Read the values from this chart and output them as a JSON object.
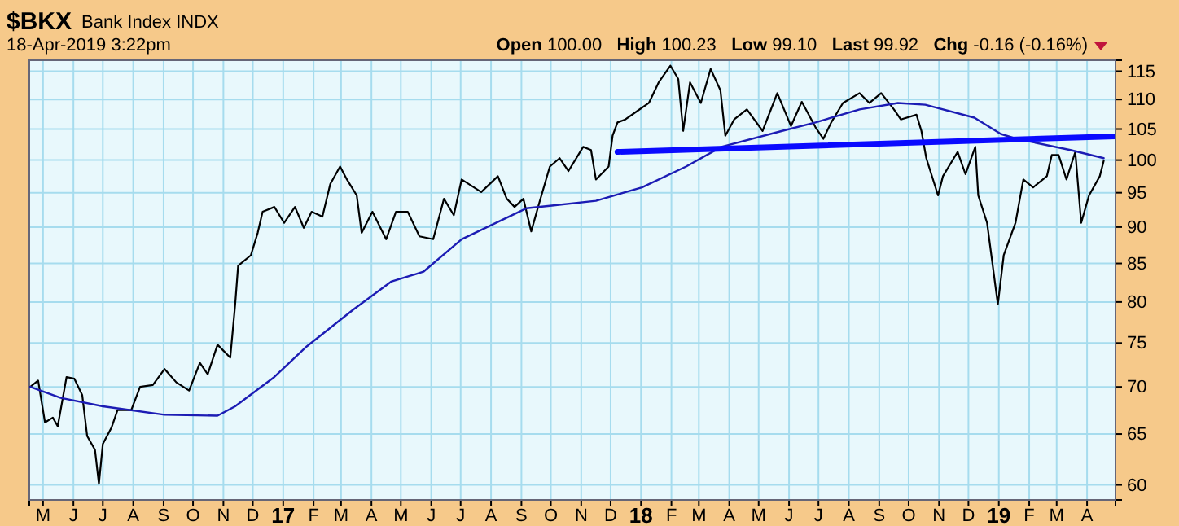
{
  "chart_data": {
    "type": "line",
    "title": "$BKX",
    "subtitle": "Bank Index  INDX",
    "annotations": [
      "18-Apr-2019 3:22pm",
      "Open 100.00",
      "High 100.23",
      "Low 99.10",
      "Last 99.92",
      "Chg -0.16 (-0.16%)"
    ],
    "log": "y",
    "grid": true,
    "xlim": [
      "2016-04-17",
      "2019-04-30"
    ],
    "xticks": [
      {
        "value": "2016-05-01",
        "label": "M"
      },
      {
        "value": "2016-06-01",
        "label": "J"
      },
      {
        "value": "2016-07-01",
        "label": "J"
      },
      {
        "value": "2016-08-01",
        "label": "A"
      },
      {
        "value": "2016-09-01",
        "label": "S"
      },
      {
        "value": "2016-10-01",
        "label": "O"
      },
      {
        "value": "2016-11-01",
        "label": "N"
      },
      {
        "value": "2016-12-01",
        "label": "D"
      },
      {
        "value": "2017-01-01",
        "label": "17"
      },
      {
        "value": "2017-02-01",
        "label": "F"
      },
      {
        "value": "2017-03-01",
        "label": "M"
      },
      {
        "value": "2017-04-01",
        "label": "A"
      },
      {
        "value": "2017-05-01",
        "label": "M"
      },
      {
        "value": "2017-06-01",
        "label": "J"
      },
      {
        "value": "2017-07-01",
        "label": "J"
      },
      {
        "value": "2017-08-01",
        "label": "A"
      },
      {
        "value": "2017-09-01",
        "label": "S"
      },
      {
        "value": "2017-10-01",
        "label": "O"
      },
      {
        "value": "2017-11-01",
        "label": "N"
      },
      {
        "value": "2017-12-01",
        "label": "D"
      },
      {
        "value": "2018-01-01",
        "label": "18"
      },
      {
        "value": "2018-02-01",
        "label": "F"
      },
      {
        "value": "2018-03-01",
        "label": "M"
      },
      {
        "value": "2018-04-01",
        "label": "A"
      },
      {
        "value": "2018-05-01",
        "label": "M"
      },
      {
        "value": "2018-06-01",
        "label": "J"
      },
      {
        "value": "2018-07-01",
        "label": "J"
      },
      {
        "value": "2018-08-01",
        "label": "A"
      },
      {
        "value": "2018-09-01",
        "label": "S"
      },
      {
        "value": "2018-10-01",
        "label": "O"
      },
      {
        "value": "2018-11-01",
        "label": "N"
      },
      {
        "value": "2018-12-01",
        "label": "D"
      },
      {
        "value": "2019-01-01",
        "label": "19"
      },
      {
        "value": "2019-02-01",
        "label": "F"
      },
      {
        "value": "2019-03-01",
        "label": "M"
      },
      {
        "value": "2019-04-01",
        "label": "A"
      }
    ],
    "ylim": [
      58.6,
      117
    ],
    "yticks": [
      60,
      65,
      70,
      75,
      80,
      85,
      90,
      95,
      100,
      105,
      110,
      115
    ],
    "series": [
      {
        "color": "#000000",
        "x": [
          "2016-04-18",
          "2016-04-26",
          "2016-05-03",
          "2016-05-11",
          "2016-05-16",
          "2016-05-25",
          "2016-06-02",
          "2016-06-10",
          "2016-06-15",
          "2016-06-23",
          "2016-06-27",
          "2016-07-01",
          "2016-07-10",
          "2016-07-16",
          "2016-07-30",
          "2016-08-08",
          "2016-08-21",
          "2016-09-02",
          "2016-09-14",
          "2016-09-27",
          "2016-10-08",
          "2016-10-16",
          "2016-10-26",
          "2016-11-08",
          "2016-11-13",
          "2016-11-16",
          "2016-11-29",
          "2016-12-06",
          "2016-12-11",
          "2016-12-23",
          "2017-01-02",
          "2017-01-13",
          "2017-01-22",
          "2017-01-30",
          "2017-02-10",
          "2017-02-18",
          "2017-02-28",
          "2017-03-07",
          "2017-03-17",
          "2017-03-22",
          "2017-04-02",
          "2017-04-16",
          "2017-04-26",
          "2017-05-08",
          "2017-05-20",
          "2017-06-03",
          "2017-06-14",
          "2017-06-24",
          "2017-07-02",
          "2017-07-22",
          "2017-08-08",
          "2017-08-17",
          "2017-08-25",
          "2017-09-03",
          "2017-09-11",
          "2017-09-19",
          "2017-09-30",
          "2017-10-10",
          "2017-10-19",
          "2017-11-03",
          "2017-11-11",
          "2017-11-16",
          "2017-11-29",
          "2017-12-03",
          "2017-12-08",
          "2017-12-16",
          "2017-12-28",
          "2018-01-09",
          "2018-01-19",
          "2018-01-31",
          "2018-02-08",
          "2018-02-13",
          "2018-02-20",
          "2018-03-03",
          "2018-03-13",
          "2018-03-23",
          "2018-03-28",
          "2018-04-06",
          "2018-04-19",
          "2018-05-05",
          "2018-05-20",
          "2018-06-03",
          "2018-06-14",
          "2018-06-28",
          "2018-07-06",
          "2018-07-14",
          "2018-07-26",
          "2018-08-12",
          "2018-08-22",
          "2018-09-03",
          "2018-09-16",
          "2018-09-23",
          "2018-10-09",
          "2018-10-14",
          "2018-10-19",
          "2018-10-31",
          "2018-11-05",
          "2018-11-20",
          "2018-11-28",
          "2018-12-08",
          "2018-12-11",
          "2018-12-20",
          "2018-12-31",
          "2019-01-06",
          "2019-01-18",
          "2019-01-26",
          "2019-02-05",
          "2019-02-19",
          "2019-02-24",
          "2019-03-03",
          "2019-03-11",
          "2019-03-20",
          "2019-03-26",
          "2019-04-03",
          "2019-04-14",
          "2019-04-18"
        ],
        "values": [
          70.0,
          70.7,
          66.2,
          66.7,
          65.8,
          71.1,
          70.9,
          69.1,
          64.8,
          63.4,
          60.1,
          64.0,
          65.7,
          67.5,
          67.5,
          70.0,
          70.2,
          72.0,
          70.5,
          69.6,
          72.7,
          71.4,
          74.8,
          73.3,
          79.7,
          84.7,
          86.1,
          89.2,
          92.2,
          92.9,
          90.6,
          92.9,
          89.9,
          92.2,
          91.5,
          96.3,
          99.0,
          97.0,
          94.6,
          89.2,
          92.2,
          88.3,
          92.2,
          92.2,
          88.7,
          88.3,
          94.1,
          91.7,
          97.0,
          95.1,
          97.5,
          94.1,
          92.9,
          94.1,
          89.4,
          93.4,
          99.0,
          100.3,
          98.3,
          102.1,
          101.6,
          97.0,
          99.0,
          103.9,
          106.1,
          106.6,
          108.0,
          109.4,
          113.0,
          116.0,
          113.6,
          104.7,
          113.0,
          109.4,
          115.4,
          111.6,
          103.9,
          106.6,
          108.3,
          104.7,
          111.1,
          105.5,
          109.6,
          105.3,
          103.4,
          106.1,
          109.4,
          111.1,
          109.4,
          111.1,
          108.3,
          106.6,
          107.4,
          104.7,
          100.3,
          94.6,
          97.5,
          101.3,
          97.8,
          102.1,
          94.6,
          90.6,
          79.7,
          86.1,
          90.6,
          97.0,
          95.8,
          97.5,
          100.8,
          100.8,
          97.0,
          101.3,
          90.6,
          94.6,
          97.5,
          99.9
        ]
      },
      {
        "color": "#1c1cb4",
        "x": [
          "2016-04-18",
          "2016-05-19",
          "2016-07-01",
          "2016-09-02",
          "2016-10-26",
          "2016-11-13",
          "2016-12-23",
          "2017-01-25",
          "2017-03-14",
          "2017-04-21",
          "2017-05-24",
          "2017-07-02",
          "2017-09-06",
          "2017-10-02",
          "2017-11-16",
          "2018-01-02",
          "2018-02-16",
          "2018-03-24",
          "2018-05-25",
          "2018-06-28",
          "2018-08-12",
          "2018-09-20",
          "2018-10-18",
          "2018-12-07",
          "2019-01-03",
          "2019-01-19",
          "2019-03-15",
          "2019-04-18"
        ],
        "values": [
          70.0,
          68.8,
          67.9,
          67.0,
          66.9,
          67.9,
          71.1,
          74.6,
          79.1,
          82.6,
          83.9,
          88.3,
          92.7,
          93.1,
          93.8,
          95.8,
          99.0,
          102.1,
          104.7,
          106.1,
          108.3,
          109.4,
          109.1,
          106.9,
          104.2,
          103.4,
          101.6,
          100.3
        ]
      },
      {
        "type": "line",
        "color": "#0a0aff",
        "x": [
          "2017-12-08",
          "2019-04-30"
        ],
        "values": [
          101.3,
          103.8
        ]
      }
    ]
  }
}
